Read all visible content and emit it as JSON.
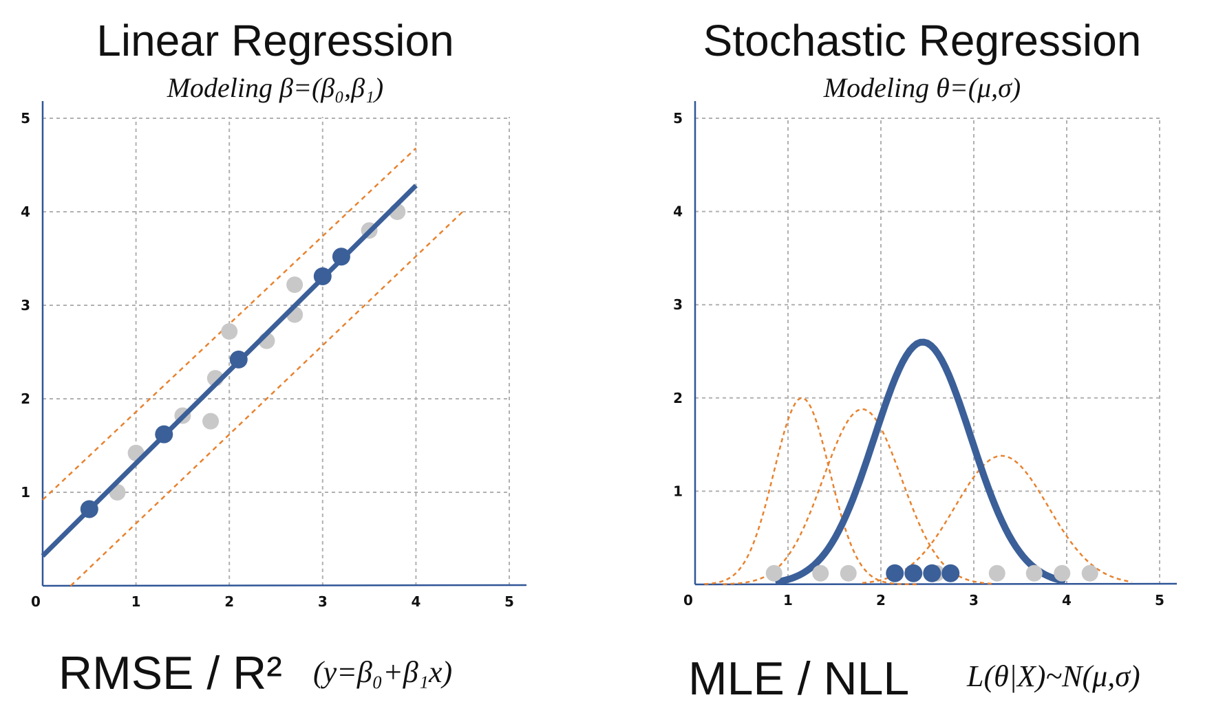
{
  "panels": {
    "left": {
      "title": "Linear Regression",
      "subtitle": "Modeling β=(β₀,β₁)",
      "metric": "RMSE / R²",
      "formula": "(y=β₀+β₁x)"
    },
    "right": {
      "title": "Stochastic Regression",
      "subtitle": "Modeling θ=(μ,σ)",
      "metric": "MLE / NLL",
      "formula": "L(θ|X)~N(μ,σ)"
    }
  },
  "colors": {
    "main": "#3b5f98",
    "dashed": "#e8822e",
    "gray_point": "#c8c8c8",
    "grid": "#b0b0b0",
    "axis": "#2f5597"
  },
  "chart_data": [
    {
      "type": "scatter",
      "xlim": [
        0,
        5
      ],
      "ylim": [
        0,
        5
      ],
      "ticks": [
        "0",
        "1",
        "2",
        "3",
        "4",
        "5"
      ],
      "grid": true,
      "series": [
        {
          "role": "observations",
          "points": [
            [
              0.8,
              1.0
            ],
            [
              1.0,
              1.42
            ],
            [
              1.5,
              1.82
            ],
            [
              1.8,
              1.76
            ],
            [
              1.85,
              2.22
            ],
            [
              2.0,
              2.72
            ],
            [
              2.4,
              2.62
            ],
            [
              2.7,
              3.22
            ],
            [
              2.7,
              2.9
            ],
            [
              3.5,
              3.8
            ],
            [
              3.8,
              4.0
            ]
          ]
        },
        {
          "role": "fitted_points",
          "points": [
            [
              0.5,
              0.82
            ],
            [
              1.3,
              1.62
            ],
            [
              2.1,
              2.42
            ],
            [
              3.0,
              3.31
            ],
            [
              3.2,
              3.52
            ]
          ]
        },
        {
          "role": "regression_line",
          "points": [
            [
              0,
              0.32
            ],
            [
              4.0,
              4.28
            ]
          ]
        },
        {
          "role": "upper_band",
          "points": [
            [
              0,
              0.92
            ],
            [
              4.0,
              4.68
            ]
          ]
        },
        {
          "role": "lower_band",
          "points": [
            [
              0.3,
              0.0
            ],
            [
              4.5,
              4.0
            ]
          ]
        }
      ]
    },
    {
      "type": "line",
      "xlim": [
        0,
        5
      ],
      "ylim": [
        0,
        5
      ],
      "ticks": [
        "0",
        "1",
        "2",
        "3",
        "4",
        "5"
      ],
      "grid": true,
      "series": [
        {
          "role": "best_fit_density",
          "mu": 2.45,
          "sigma": 0.52,
          "peak": 2.6,
          "x_range": [
            0.9,
            3.95
          ]
        },
        {
          "role": "candidate_density",
          "mu": 1.15,
          "sigma": 0.3,
          "peak": 2.0,
          "x_range": [
            0.1,
            2.4
          ]
        },
        {
          "role": "candidate_density",
          "mu": 1.8,
          "sigma": 0.42,
          "peak": 1.88,
          "x_range": [
            0.3,
            3.2
          ]
        },
        {
          "role": "candidate_density",
          "mu": 3.3,
          "sigma": 0.5,
          "peak": 1.38,
          "x_range": [
            1.8,
            4.7
          ]
        },
        {
          "role": "observations",
          "points": [
            [
              0.85,
              0.12
            ],
            [
              1.35,
              0.12
            ],
            [
              1.65,
              0.12
            ],
            [
              2.6,
              0.12
            ],
            [
              3.25,
              0.12
            ],
            [
              3.65,
              0.12
            ],
            [
              3.95,
              0.12
            ],
            [
              4.25,
              0.12
            ]
          ]
        },
        {
          "role": "sampled_points",
          "points": [
            [
              2.15,
              0.12
            ],
            [
              2.35,
              0.12
            ],
            [
              2.55,
              0.12
            ],
            [
              2.75,
              0.12
            ]
          ]
        }
      ]
    }
  ]
}
